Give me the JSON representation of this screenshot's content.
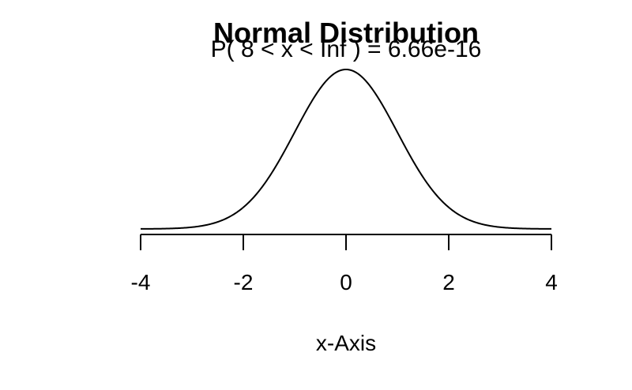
{
  "chart_data": {
    "type": "line",
    "title": "Normal Distribution",
    "subtitle": "P( 8 < x < Inf ) = 6.66e-16",
    "xlabel": "x-Axis",
    "ylabel": "",
    "xlim": [
      -4,
      4
    ],
    "ylim": [
      0,
      0.4
    ],
    "xticks": [
      -4,
      -2,
      0,
      2,
      4
    ],
    "xtick_labels": [
      "-4",
      "-2",
      "0",
      "2",
      "4"
    ],
    "grid": false,
    "series": [
      {
        "distribution": "normal",
        "mean": 0,
        "sd": 1,
        "x_range": [
          -4,
          4
        ],
        "color": "#000000"
      }
    ]
  }
}
